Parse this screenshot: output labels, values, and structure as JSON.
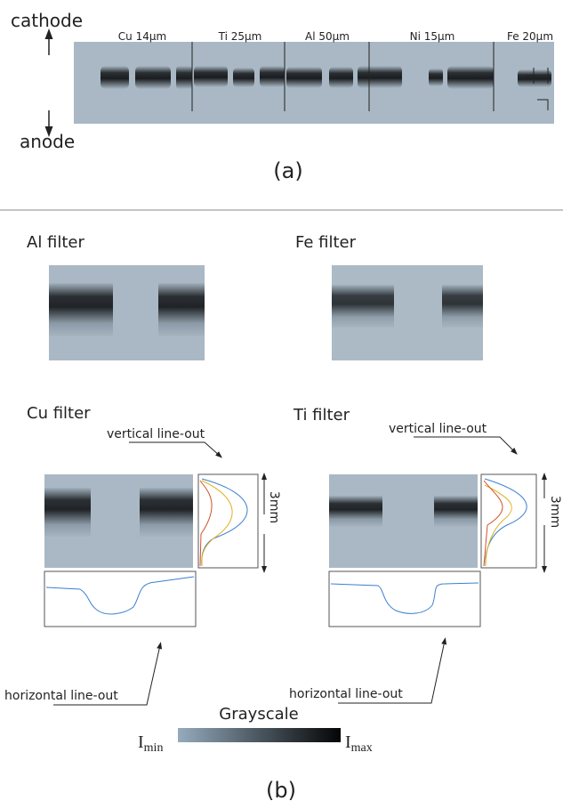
{
  "panel_a": {
    "cathode": "cathode",
    "anode": "anode",
    "strip_labels": [
      "Cu 14μm",
      "Ti 25μm",
      "Al 50μm",
      "Ni 15μm",
      "Fe 20μm"
    ],
    "caption": "(a)"
  },
  "panel_b": {
    "filters": [
      "Al filter",
      "Fe filter",
      "Cu filter",
      "Ti filter"
    ],
    "vertical_lineout": "vertical line-out",
    "horizontal_lineout": "horizontal line-out",
    "scale_label": "3mm",
    "colorbar": {
      "title": "Grayscale",
      "symbol": "I",
      "min": "min",
      "max": "max"
    },
    "caption": "(b)"
  }
}
